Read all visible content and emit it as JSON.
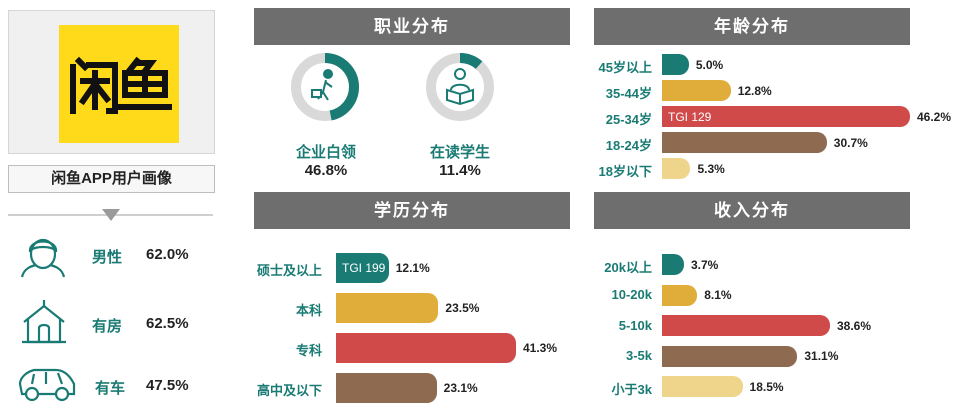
{
  "logo": {
    "text": "闲鱼"
  },
  "profile_title": "闲鱼APP用户画像",
  "traits": [
    {
      "icon": "male-face-icon",
      "label": "男性",
      "value": "62.0%"
    },
    {
      "icon": "house-icon",
      "label": "有房",
      "value": "62.5%"
    },
    {
      "icon": "car-icon",
      "label": "有车",
      "value": "47.5%"
    }
  ],
  "colors": {
    "teal": "#1a7b74",
    "gold": "#e0ad3b",
    "red": "#d04a4a",
    "brown": "#8e6a50",
    "cream": "#efd58c",
    "header": "#6e6e6e"
  },
  "chart_data": [
    {
      "type": "pie",
      "title": "职业分布",
      "items": [
        {
          "label": "企业白领",
          "value": 46.8,
          "value_text": "46.8%",
          "icon": "office-worker-icon"
        },
        {
          "label": "在读学生",
          "value": 11.4,
          "value_text": "11.4%",
          "icon": "student-reading-icon"
        }
      ]
    },
    {
      "type": "bar",
      "title": "年龄分布",
      "categories": [
        "45岁以上",
        "35-44岁",
        "25-34岁",
        "18-24岁",
        "18岁以下"
      ],
      "values": [
        5.0,
        12.8,
        46.2,
        30.7,
        5.3
      ],
      "value_labels": [
        "5.0%",
        "12.8%",
        "46.2%",
        "30.7%",
        "5.3%"
      ],
      "colors": [
        "#1a7b74",
        "#e0ad3b",
        "#d04a4a",
        "#8e6a50",
        "#efd58c"
      ],
      "annotations": [
        {
          "category": "25-34岁",
          "text": "TGI 129"
        }
      ]
    },
    {
      "type": "bar",
      "title": "学历分布",
      "categories": [
        "硕士及以上",
        "本科",
        "专科",
        "高中及以下"
      ],
      "values": [
        12.1,
        23.5,
        41.3,
        23.1
      ],
      "value_labels": [
        "12.1%",
        "23.5%",
        "41.3%",
        "23.1%"
      ],
      "colors": [
        "#1a7b74",
        "#e0ad3b",
        "#d04a4a",
        "#8e6a50"
      ],
      "annotations": [
        {
          "category": "硕士及以上",
          "text": "TGI 199"
        }
      ]
    },
    {
      "type": "bar",
      "title": "收入分布",
      "categories": [
        "20k以上",
        "10-20k",
        "5-10k",
        "3-5k",
        "小于3k"
      ],
      "values": [
        3.7,
        8.1,
        38.6,
        31.1,
        18.5
      ],
      "value_labels": [
        "3.7%",
        "8.1%",
        "38.6%",
        "31.1%",
        "18.5%"
      ],
      "colors": [
        "#1a7b74",
        "#e0ad3b",
        "#d04a4a",
        "#8e6a50",
        "#efd58c"
      ]
    }
  ]
}
